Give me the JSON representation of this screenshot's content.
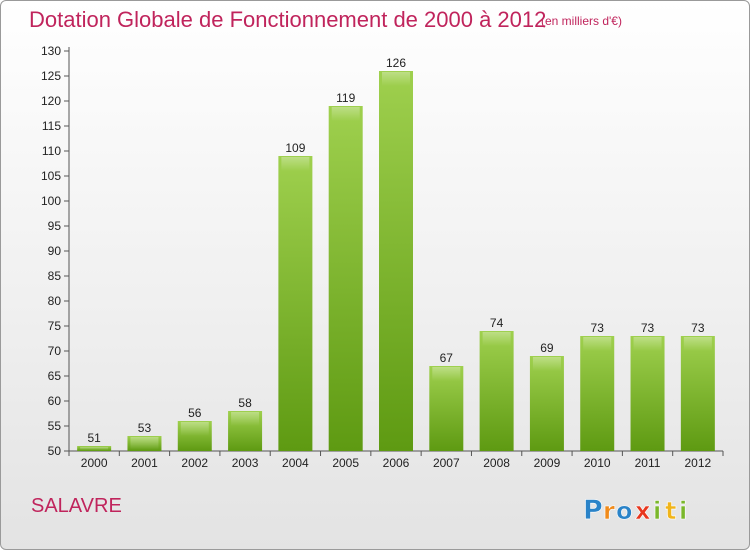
{
  "header": {
    "title": "Dotation Globale de Fonctionnement de 2000 à 2012",
    "subtitle": "(en milliers d'€)"
  },
  "commune": "SALAVRE",
  "logo": {
    "letters": [
      "P",
      "r",
      "o",
      "x",
      "i",
      "t",
      "i"
    ]
  },
  "colors": {
    "title": "#c0245c",
    "bar_top": "#9fd04e",
    "bar_bottom": "#5e9a12",
    "axis": "#555555"
  },
  "chart_data": {
    "type": "bar",
    "title": "Dotation Globale de Fonctionnement de 2000 à 2012",
    "subtitle": "(en milliers d'€)",
    "categories": [
      "2000",
      "2001",
      "2002",
      "2003",
      "2004",
      "2005",
      "2006",
      "2007",
      "2008",
      "2009",
      "2010",
      "2011",
      "2012"
    ],
    "values": [
      51,
      53,
      56,
      58,
      109,
      119,
      126,
      67,
      74,
      69,
      73,
      73,
      73
    ],
    "ylim": [
      50,
      130
    ],
    "ytick_step": 5,
    "xlabel": "",
    "ylabel": "",
    "grid": false,
    "legend": "none"
  }
}
